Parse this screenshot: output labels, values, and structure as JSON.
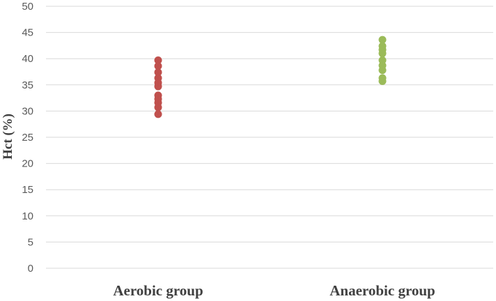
{
  "chart_data": {
    "type": "scatter",
    "title": "",
    "xlabel": "",
    "ylabel": "Hct (%)",
    "categories": [
      "Aerobic group",
      "Anaerobic group"
    ],
    "ylim": [
      0,
      50
    ],
    "yticks": [
      0,
      5,
      10,
      15,
      20,
      25,
      30,
      35,
      40,
      45,
      50
    ],
    "grid": true,
    "series": [
      {
        "name": "Aerobic group",
        "color": "#c0504d",
        "category": "Aerobic group",
        "values": [
          39.7,
          38.6,
          37.4,
          36.3,
          35.4,
          34.7,
          33.0,
          32.3,
          31.6,
          30.7,
          29.4
        ]
      },
      {
        "name": "Anaerobic group",
        "color": "#9bbb59",
        "category": "Anaerobic group",
        "values": [
          43.6,
          42.4,
          41.7,
          41.0,
          39.7,
          38.7,
          37.8,
          36.3,
          35.7
        ]
      }
    ]
  }
}
